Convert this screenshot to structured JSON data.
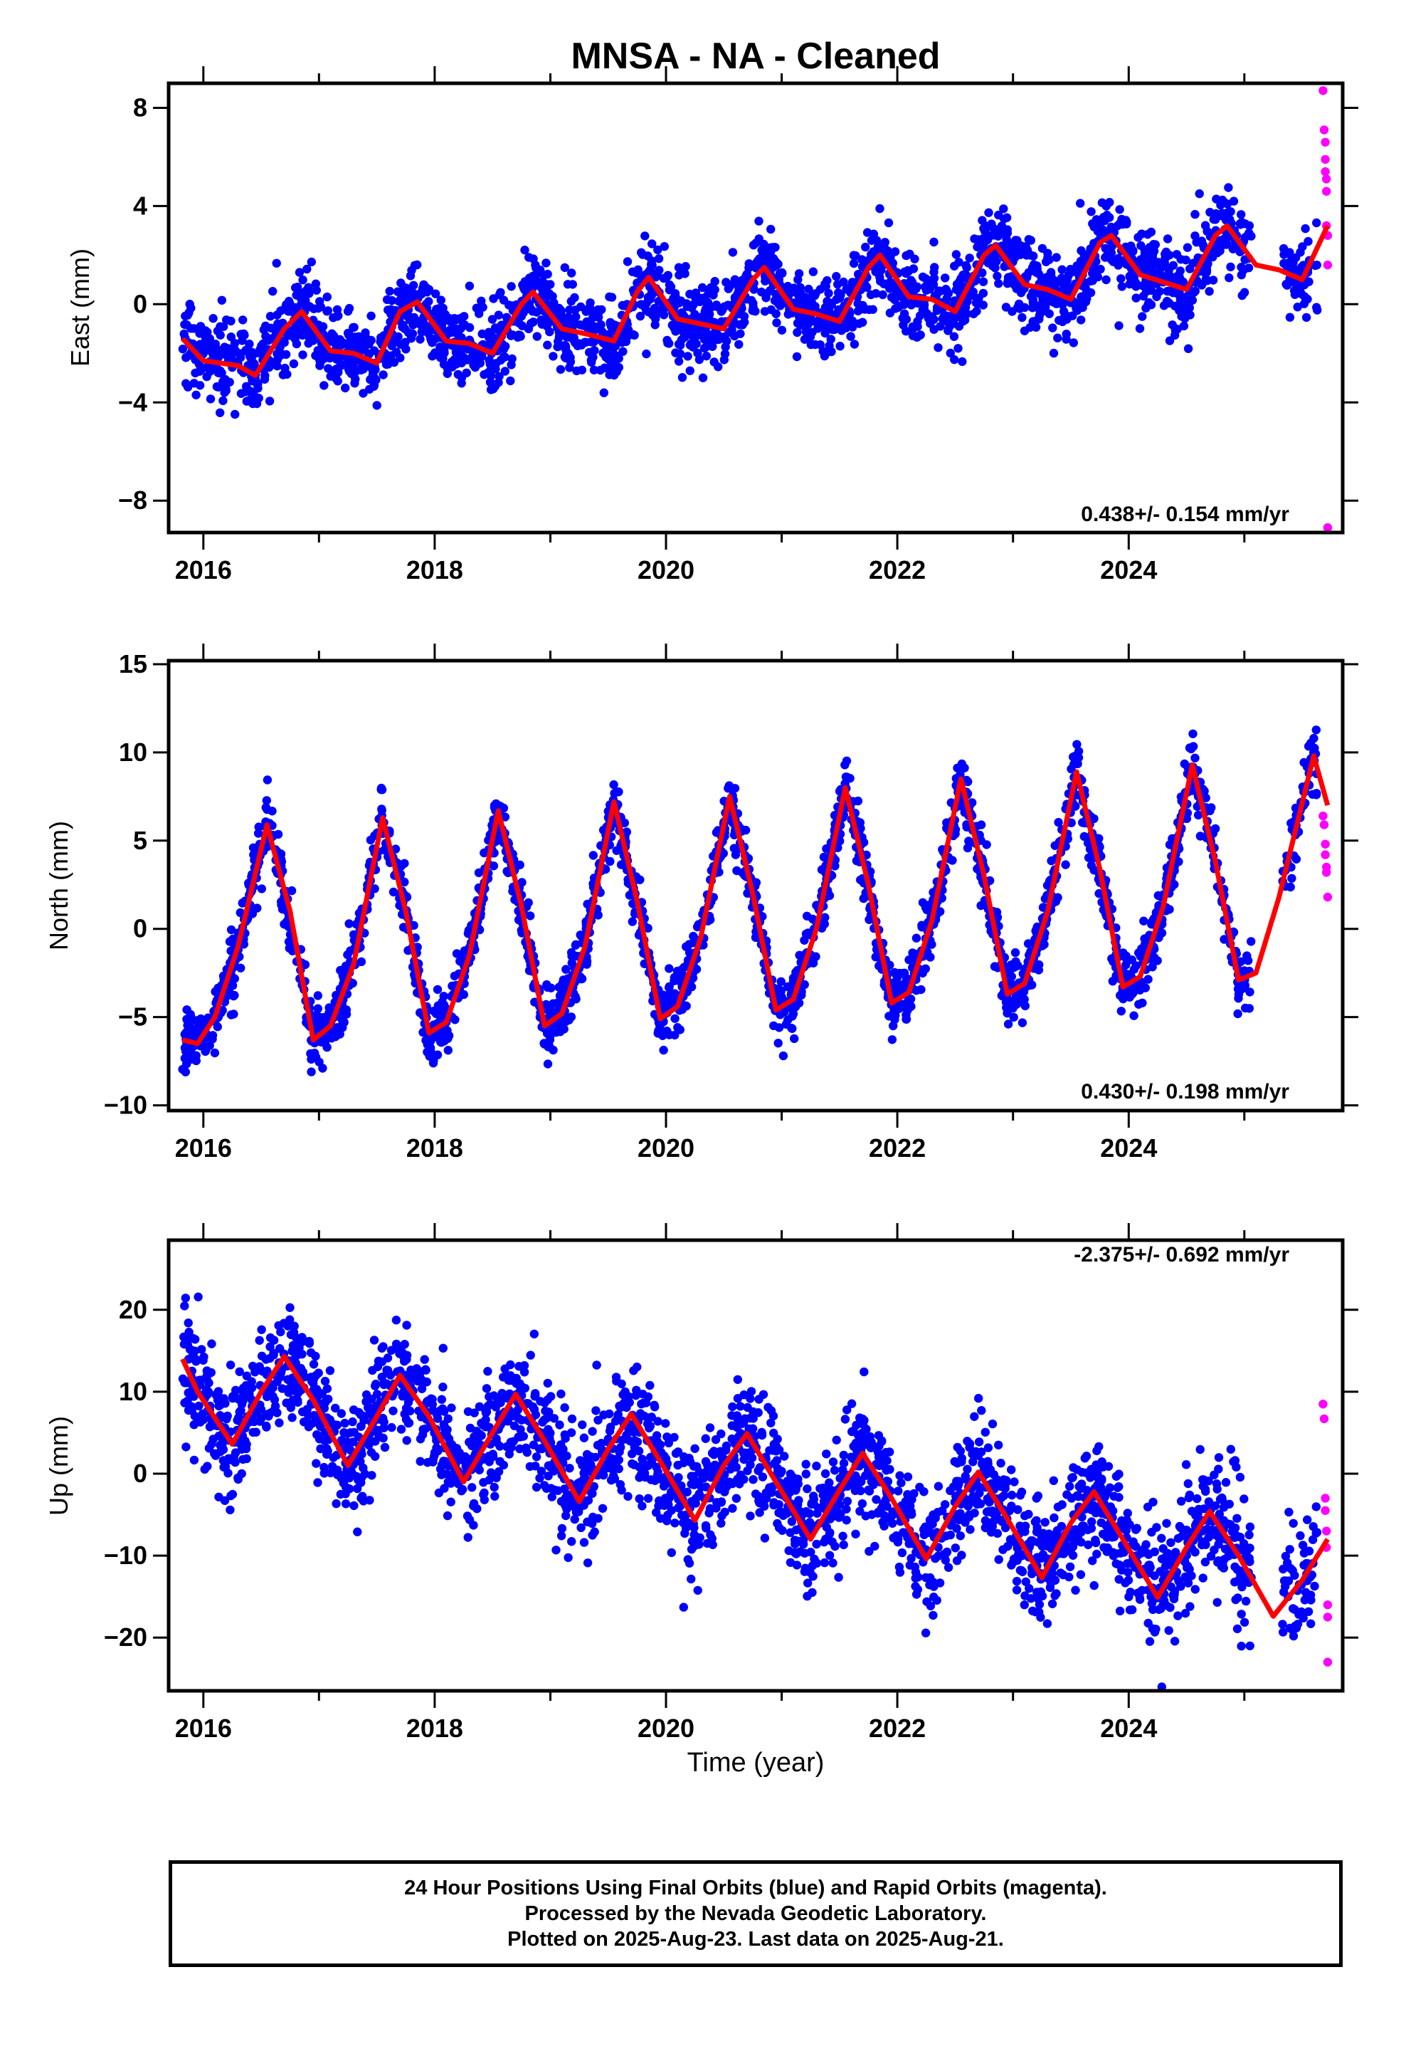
{
  "title": "MNSA  - NA - Cleaned",
  "footer": {
    "line1": "24 Hour Positions Using Final Orbits (blue) and Rapid Orbits (magenta).",
    "line2": "Processed by the Nevada Geodetic Laboratory.",
    "line3": "Plotted on 2025-Aug-23. Last data on 2025-Aug-21."
  },
  "colors": {
    "final": "#0000ff",
    "rapid": "#ff00ff",
    "model": "#ff0000",
    "axis": "#000000"
  },
  "chart_data": [
    {
      "type": "scatter",
      "panel": "east",
      "title": "MNSA  - NA - Cleaned",
      "ylabel": "East (mm)",
      "xlabel": "",
      "xlim": [
        2015.7,
        2025.85
      ],
      "ylim": [
        -9.3,
        9
      ],
      "xticks": [
        2016,
        2018,
        2020,
        2022,
        2024
      ],
      "yticks": [
        -8,
        -4,
        0,
        4,
        8
      ],
      "rate_text": "0.438+/- 0.154 mm/yr",
      "rate_position": "bottom-right",
      "trend": {
        "rate": 0.438,
        "offset": 1.4
      },
      "model": [
        [
          2015.82,
          -1.4
        ],
        [
          2016.0,
          -2.3
        ],
        [
          2016.3,
          -2.5
        ],
        [
          2016.45,
          -2.9
        ],
        [
          2016.7,
          -1.0
        ],
        [
          2016.85,
          -0.3
        ],
        [
          2017.1,
          -1.9
        ],
        [
          2017.3,
          -2.0
        ],
        [
          2017.5,
          -2.4
        ],
        [
          2017.7,
          -0.3
        ],
        [
          2017.85,
          0.1
        ],
        [
          2018.1,
          -1.5
        ],
        [
          2018.3,
          -1.6
        ],
        [
          2018.5,
          -2.0
        ],
        [
          2018.75,
          0.0
        ],
        [
          2018.85,
          0.5
        ],
        [
          2019.1,
          -1.0
        ],
        [
          2019.3,
          -1.2
        ],
        [
          2019.55,
          -1.5
        ],
        [
          2019.75,
          0.5
        ],
        [
          2019.85,
          1.1
        ],
        [
          2020.1,
          -0.6
        ],
        [
          2020.3,
          -0.8
        ],
        [
          2020.5,
          -1.0
        ],
        [
          2020.75,
          1.0
        ],
        [
          2020.85,
          1.5
        ],
        [
          2021.1,
          -0.2
        ],
        [
          2021.3,
          -0.4
        ],
        [
          2021.5,
          -0.7
        ],
        [
          2021.75,
          1.5
        ],
        [
          2021.85,
          2.0
        ],
        [
          2022.1,
          0.3
        ],
        [
          2022.3,
          0.2
        ],
        [
          2022.5,
          -0.3
        ],
        [
          2022.75,
          2.0
        ],
        [
          2022.85,
          2.4
        ],
        [
          2023.1,
          0.8
        ],
        [
          2023.3,
          0.6
        ],
        [
          2023.5,
          0.2
        ],
        [
          2023.75,
          2.5
        ],
        [
          2023.85,
          2.8
        ],
        [
          2024.1,
          1.2
        ],
        [
          2024.3,
          0.9
        ],
        [
          2024.5,
          0.6
        ],
        [
          2024.75,
          2.8
        ],
        [
          2024.85,
          3.2
        ],
        [
          2025.1,
          1.6
        ],
        [
          2025.3,
          1.4
        ],
        [
          2025.5,
          1.0
        ],
        [
          2025.72,
          3.2
        ]
      ],
      "segments": [
        {
          "range": [
            2015.82,
            2025.06
          ],
          "n": 2400,
          "seasonal": [
            [
              1.2,
              0.8
            ],
            [
              0.4,
              0.2
            ]
          ],
          "noise": 0.85,
          "color": "final"
        },
        {
          "range": [
            2025.33,
            2025.63
          ],
          "n": 60,
          "seasonal": [
            [
              1.2,
              0.8
            ],
            [
              0.4,
              0.2
            ]
          ],
          "noise": 0.9,
          "color": "final"
        }
      ],
      "rapid_points": [
        [
          2025.68,
          8.7
        ],
        [
          2025.69,
          7.1
        ],
        [
          2025.7,
          6.6
        ],
        [
          2025.7,
          5.9
        ],
        [
          2025.7,
          5.4
        ],
        [
          2025.71,
          5.1
        ],
        [
          2025.71,
          4.6
        ],
        [
          2025.71,
          3.2
        ],
        [
          2025.72,
          2.8
        ],
        [
          2025.72,
          1.6
        ],
        [
          2025.72,
          -9.1
        ]
      ]
    },
    {
      "type": "scatter",
      "panel": "north",
      "ylabel": "North (mm)",
      "xlabel": "",
      "xlim": [
        2015.7,
        2025.85
      ],
      "ylim": [
        -10.3,
        15.2
      ],
      "xticks": [
        2016,
        2018,
        2020,
        2022,
        2024
      ],
      "yticks": [
        -10,
        -5,
        0,
        5,
        10,
        15
      ],
      "rate_text": "0.430+/- 0.198 mm/yr",
      "rate_position": "bottom-right",
      "trend": {
        "rate": 0.43,
        "offset": 0.1
      },
      "model": [
        [
          2015.82,
          -6.3
        ],
        [
          2015.95,
          -6.5
        ],
        [
          2016.1,
          -5.0
        ],
        [
          2016.3,
          -1.0
        ],
        [
          2016.55,
          5.9
        ],
        [
          2016.75,
          1.0
        ],
        [
          2016.95,
          -6.3
        ],
        [
          2017.1,
          -5.5
        ],
        [
          2017.3,
          -2.0
        ],
        [
          2017.55,
          6.3
        ],
        [
          2017.75,
          1.0
        ],
        [
          2017.95,
          -5.9
        ],
        [
          2018.1,
          -5.3
        ],
        [
          2018.3,
          -1.5
        ],
        [
          2018.55,
          6.7
        ],
        [
          2018.75,
          1.3
        ],
        [
          2018.95,
          -5.5
        ],
        [
          2019.1,
          -4.8
        ],
        [
          2019.3,
          -1.0
        ],
        [
          2019.55,
          7.2
        ],
        [
          2019.75,
          1.6
        ],
        [
          2019.95,
          -5.1
        ],
        [
          2020.1,
          -4.4
        ],
        [
          2020.3,
          -0.5
        ],
        [
          2020.55,
          7.5
        ],
        [
          2020.75,
          2.0
        ],
        [
          2020.95,
          -4.6
        ],
        [
          2021.1,
          -4.0
        ],
        [
          2021.3,
          0.0
        ],
        [
          2021.55,
          8.0
        ],
        [
          2021.75,
          2.5
        ],
        [
          2021.95,
          -4.2
        ],
        [
          2022.1,
          -3.6
        ],
        [
          2022.3,
          0.5
        ],
        [
          2022.55,
          8.5
        ],
        [
          2022.75,
          3.0
        ],
        [
          2022.95,
          -3.7
        ],
        [
          2023.1,
          -3.1
        ],
        [
          2023.3,
          1.0
        ],
        [
          2023.55,
          8.9
        ],
        [
          2023.75,
          3.4
        ],
        [
          2023.95,
          -3.3
        ],
        [
          2024.1,
          -2.7
        ],
        [
          2024.3,
          1.3
        ],
        [
          2024.55,
          9.3
        ],
        [
          2024.75,
          3.8
        ],
        [
          2024.95,
          -2.9
        ],
        [
          2025.1,
          -2.5
        ],
        [
          2025.3,
          1.8
        ],
        [
          2025.6,
          9.8
        ],
        [
          2025.72,
          7.0
        ]
      ],
      "segments": [
        {
          "range": [
            2015.82,
            2025.06
          ],
          "n": 2400,
          "seasonal": [
            [
              0.0,
              -6.0
            ],
            [
              0.0,
              0.0
            ]
          ],
          "noise": 0.9,
          "color": "final"
        },
        {
          "range": [
            2025.33,
            2025.63
          ],
          "n": 60,
          "seasonal": [
            [
              0.0,
              -6.0
            ],
            [
              0.0,
              0.0
            ]
          ],
          "noise": 0.9,
          "color": "final"
        }
      ],
      "rapid_points": [
        [
          2025.68,
          6.4
        ],
        [
          2025.69,
          5.9
        ],
        [
          2025.7,
          4.8
        ],
        [
          2025.7,
          4.2
        ],
        [
          2025.71,
          3.5
        ],
        [
          2025.71,
          3.2
        ],
        [
          2025.72,
          1.8
        ]
      ]
    },
    {
      "type": "scatter",
      "panel": "up",
      "ylabel": "Up (mm)",
      "xlabel": "Time (year)",
      "xlim": [
        2015.7,
        2025.85
      ],
      "ylim": [
        -26.5,
        28.5
      ],
      "xticks": [
        2016,
        2018,
        2020,
        2022,
        2024
      ],
      "yticks": [
        -20,
        -10,
        0,
        10,
        20
      ],
      "rate_text": "-2.375+/- 0.692 mm/yr",
      "rate_position": "top-right",
      "trend": {
        "rate": -2.375,
        "offset": 5.3
      },
      "model": [
        [
          2015.82,
          14.0
        ],
        [
          2015.95,
          10.0
        ],
        [
          2016.25,
          3.6
        ],
        [
          2016.5,
          10.0
        ],
        [
          2016.7,
          14.3
        ],
        [
          2016.95,
          9.0
        ],
        [
          2017.25,
          1.0
        ],
        [
          2017.5,
          7.0
        ],
        [
          2017.7,
          12.0
        ],
        [
          2017.95,
          7.0
        ],
        [
          2018.25,
          -1.0
        ],
        [
          2018.5,
          5.0
        ],
        [
          2018.7,
          9.7
        ],
        [
          2018.95,
          4.0
        ],
        [
          2019.25,
          -3.4
        ],
        [
          2019.5,
          3.0
        ],
        [
          2019.7,
          7.3
        ],
        [
          2019.95,
          1.5
        ],
        [
          2020.25,
          -5.7
        ],
        [
          2020.5,
          1.0
        ],
        [
          2020.7,
          4.9
        ],
        [
          2020.95,
          -1.0
        ],
        [
          2021.25,
          -8.0
        ],
        [
          2021.5,
          -2.0
        ],
        [
          2021.7,
          2.5
        ],
        [
          2021.95,
          -3.0
        ],
        [
          2022.25,
          -10.4
        ],
        [
          2022.5,
          -4.0
        ],
        [
          2022.7,
          0.2
        ],
        [
          2022.95,
          -5.5
        ],
        [
          2023.25,
          -12.7
        ],
        [
          2023.5,
          -6.0
        ],
        [
          2023.7,
          -2.2
        ],
        [
          2023.95,
          -8.0
        ],
        [
          2024.25,
          -15.1
        ],
        [
          2024.5,
          -9.0
        ],
        [
          2024.7,
          -4.6
        ],
        [
          2024.95,
          -10.0
        ],
        [
          2025.25,
          -17.4
        ],
        [
          2025.5,
          -13.0
        ],
        [
          2025.72,
          -8.0
        ]
      ],
      "segments": [
        {
          "range": [
            2015.82,
            2025.06
          ],
          "n": 2400,
          "seasonal": [
            [
              -2.0,
              6.0
            ],
            [
              0.0,
              0.0
            ]
          ],
          "noise": 3.7,
          "color": "final"
        },
        {
          "range": [
            2025.33,
            2025.63
          ],
          "n": 60,
          "seasonal": [
            [
              -2.0,
              6.0
            ],
            [
              0.0,
              0.0
            ]
          ],
          "noise": 4.0,
          "color": "final"
        }
      ],
      "rapid_points": [
        [
          2025.68,
          8.5
        ],
        [
          2025.69,
          6.7
        ],
        [
          2025.7,
          -3.0
        ],
        [
          2025.7,
          -4.5
        ],
        [
          2025.71,
          -7.0
        ],
        [
          2025.71,
          -9.0
        ],
        [
          2025.72,
          -16.0
        ],
        [
          2025.72,
          -17.5
        ],
        [
          2025.72,
          -23.0
        ]
      ]
    }
  ]
}
